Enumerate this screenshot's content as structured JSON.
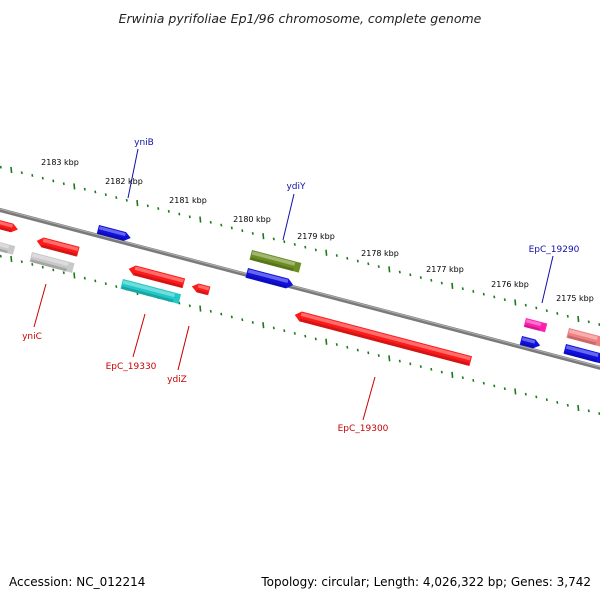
{
  "title": "Erwinia pyrifoliae Ep1/96 chromosome, complete genome",
  "footer": {
    "accession": "Accession: NC_012214",
    "summary": "Topology: circular; Length: 4,026,322 bp; Genes: 3,742"
  },
  "colors": {
    "backbone": "#7a7a7a",
    "ticks": "#1a7a1a",
    "forward_label": "#1010aa",
    "reverse_label": "#cc0000"
  },
  "scale": {
    "unit": "kbp",
    "labels": [
      "2183 kbp",
      "2182 kbp",
      "2181 kbp",
      "2180 kbp",
      "2179 kbp",
      "2178 kbp",
      "2177 kbp",
      "2176 kbp",
      "2175 kbp"
    ]
  },
  "gene_labels": [
    {
      "text": "yniB",
      "strand": "forward"
    },
    {
      "text": "ydiY",
      "strand": "forward"
    },
    {
      "text": "EpC_19290",
      "strand": "forward"
    },
    {
      "text": "yniC",
      "strand": "reverse"
    },
    {
      "text": "EpC_19330",
      "strand": "reverse"
    },
    {
      "text": "ydiZ",
      "strand": "reverse"
    },
    {
      "text": "EpC_19300",
      "strand": "reverse"
    }
  ],
  "features": [
    {
      "name": "feature-1",
      "color": "#ff1a1a"
    },
    {
      "name": "feature-2",
      "color": "#c8c8c8"
    },
    {
      "name": "feature-3",
      "color": "#ff1a1a"
    },
    {
      "name": "feature-4",
      "color": "#c8c8c8"
    },
    {
      "name": "yniB",
      "color": "#1010e0"
    },
    {
      "name": "feature-6",
      "color": "#ff1a1a"
    },
    {
      "name": "EpC_19330",
      "color": "#20c8c8"
    },
    {
      "name": "ydiZ",
      "color": "#ff1a1a"
    },
    {
      "name": "ydiY",
      "color": "#6b8e23"
    },
    {
      "name": "feature-10",
      "color": "#1010e0"
    },
    {
      "name": "EpC_19300",
      "color": "#ff1a1a"
    },
    {
      "name": "EpC_19290",
      "color": "#ff20b0"
    },
    {
      "name": "feature-13",
      "color": "#1010e0"
    },
    {
      "name": "feature-14",
      "color": "#f08080"
    },
    {
      "name": "feature-15",
      "color": "#1010e0"
    }
  ]
}
